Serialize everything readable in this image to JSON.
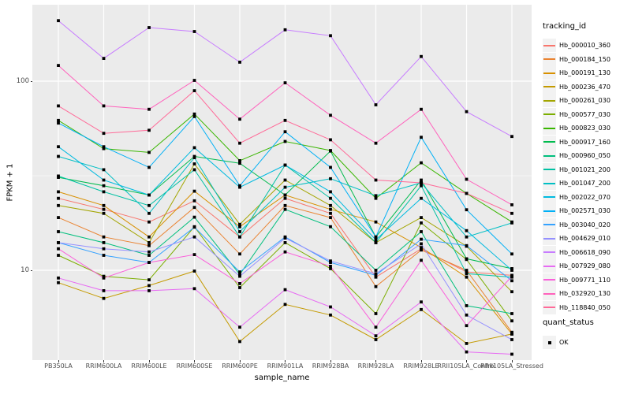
{
  "chart_data": {
    "type": "line",
    "title": "",
    "xlabel": "sample_name",
    "ylabel": "FPKM + 1",
    "y_scale": "log10",
    "grid": true,
    "panel_bg": "#EBEBEB",
    "grid_color": "#FFFFFF",
    "point_color": "#000000",
    "point_shape": "square",
    "y_ticks": [
      {
        "label": "100",
        "value": 100
      },
      {
        "label": "10",
        "value": 10
      }
    ],
    "y_minor": [
      31.623
    ],
    "x_categories": [
      "PB350LA",
      "RRIM600LA",
      "RRIM600LE",
      "RRIM600SE",
      "RRIM600PE",
      "RRIM901LA",
      "RRIM928BA",
      "RRIM928LA",
      "RRIM928LE",
      "RRII105LA_Control",
      "RRII105LA_Stressed"
    ],
    "series": [
      {
        "name": "Hb_000010_360",
        "color": "#F8766D",
        "values": [
          24,
          21,
          18,
          23.3,
          15,
          24,
          20,
          9.2,
          13,
          9.8,
          9.4
        ]
      },
      {
        "name": "Hb_000184_150",
        "color": "#EA8331",
        "values": [
          19,
          15,
          13.5,
          21.5,
          12.2,
          22,
          19,
          8.2,
          12.8,
          10,
          4.7
        ]
      },
      {
        "name": "Hb_000191_130",
        "color": "#D89000",
        "values": [
          26,
          22,
          15,
          26.2,
          17,
          25,
          21,
          18,
          13.2,
          9.2,
          4.6
        ]
      },
      {
        "name": "Hb_000236_470",
        "color": "#C49A00",
        "values": [
          8.6,
          7.1,
          8.3,
          9.9,
          4.2,
          6.6,
          5.8,
          4.3,
          6.2,
          4.1,
          4.6
        ]
      },
      {
        "name": "Hb_000261_030",
        "color": "#A3A500",
        "values": [
          22,
          20,
          14,
          36.5,
          17.5,
          30,
          22,
          14,
          19,
          13.4,
          7.7
        ]
      },
      {
        "name": "Hb_000577_030",
        "color": "#7CAE00",
        "values": [
          12,
          9.3,
          8.9,
          17,
          8.1,
          14,
          10.2,
          5.9,
          17.8,
          11.4,
          5.4
        ]
      },
      {
        "name": "Hb_000823_030",
        "color": "#39B600",
        "values": [
          62,
          44,
          42,
          67,
          38,
          48,
          43,
          24,
          37,
          25.5,
          18
        ]
      },
      {
        "name": "Hb_000917_160",
        "color": "#00BB4E",
        "values": [
          31,
          28,
          25,
          40,
          36.8,
          25,
          42.7,
          15,
          30,
          11.5,
          10.2
        ]
      },
      {
        "name": "Hb_000960_050",
        "color": "#00BF7D",
        "values": [
          16,
          14,
          12,
          19.1,
          9.5,
          21,
          17,
          10,
          16,
          6.5,
          5.9
        ]
      },
      {
        "name": "Hb_001021_200",
        "color": "#00C1A3",
        "values": [
          31.5,
          26,
          22,
          34,
          15,
          36,
          24,
          14,
          28,
          9.6,
          9.2
        ]
      },
      {
        "name": "Hb_001047_200",
        "color": "#00BFC4",
        "values": [
          40,
          34,
          20,
          39.4,
          16,
          27.5,
          30.5,
          24.8,
          29,
          15,
          17.8
        ]
      },
      {
        "name": "Hb_002022_070",
        "color": "#00BAE0",
        "values": [
          45,
          30,
          25,
          44.5,
          27.5,
          36,
          26,
          14.5,
          24,
          16.2,
          10
        ]
      },
      {
        "name": "Hb_002571_030",
        "color": "#00B0F6",
        "values": [
          60,
          45,
          35,
          65,
          28,
          54,
          35,
          15,
          50.5,
          20.9,
          12.2
        ]
      },
      {
        "name": "Hb_003040_020",
        "color": "#35A2FF",
        "values": [
          14,
          12,
          11,
          16.9,
          9.8,
          15,
          11,
          9.4,
          14.6,
          13.5,
          8.8
        ]
      },
      {
        "name": "Hb_004629_010",
        "color": "#9590FF",
        "values": [
          14,
          13,
          12.5,
          15,
          9.3,
          14.8,
          11.2,
          9.6,
          13.8,
          5.8,
          4.3
        ]
      },
      {
        "name": "Hb_006618_090",
        "color": "#C77CFF",
        "values": [
          209,
          132,
          192,
          183,
          126,
          187,
          174,
          75,
          135,
          69,
          51
        ]
      },
      {
        "name": "Hb_007929_080",
        "color": "#E76BF3",
        "values": [
          9.1,
          7.8,
          7.8,
          8.0,
          5.0,
          7.9,
          6.4,
          4.5,
          6.8,
          3.7,
          3.6
        ]
      },
      {
        "name": "Hb_009771_110",
        "color": "#FA62DB",
        "values": [
          13,
          9.1,
          11,
          12.1,
          8.5,
          12.5,
          10.5,
          5.0,
          11.3,
          5.1,
          9.3
        ]
      },
      {
        "name": "Hb_032920_130",
        "color": "#FF62BC",
        "values": [
          121,
          74,
          71,
          101,
          63,
          98,
          66,
          47,
          71,
          30.3,
          22.2
        ]
      },
      {
        "name": "Hb_118840_050",
        "color": "#FF6A98",
        "values": [
          74,
          53,
          55,
          89,
          47,
          62,
          49,
          30,
          29,
          25.5,
          20
        ]
      }
    ]
  },
  "legend": {
    "tracking_title": "tracking_id",
    "quant_title": "quant_status",
    "quant_items": [
      "OK"
    ]
  }
}
